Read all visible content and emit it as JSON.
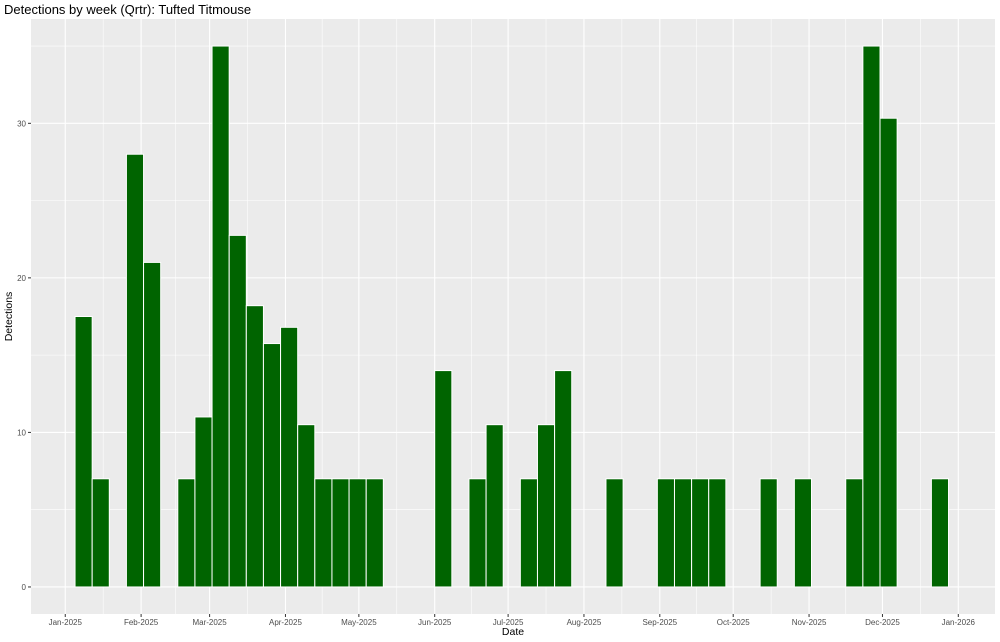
{
  "chart_data": {
    "type": "bar",
    "title": "Detections by week (Qrtr): Tufted Titmouse",
    "xlabel": "Date",
    "ylabel": "Detections",
    "x_is_date": true,
    "xlim": [
      "2024-12-18",
      "2026-01-16"
    ],
    "ylim": [
      -1.75,
      36.75
    ],
    "y_ticks": [
      0,
      10,
      20,
      30
    ],
    "x_ticks": [
      {
        "date": "2025-01-01",
        "label": "Jan-2025"
      },
      {
        "date": "2025-02-01",
        "label": "Feb-2025"
      },
      {
        "date": "2025-03-01",
        "label": "Mar-2025"
      },
      {
        "date": "2025-04-01",
        "label": "Apr-2025"
      },
      {
        "date": "2025-05-01",
        "label": "May-2025"
      },
      {
        "date": "2025-06-01",
        "label": "Jun-2025"
      },
      {
        "date": "2025-07-01",
        "label": "Jul-2025"
      },
      {
        "date": "2025-08-01",
        "label": "Aug-2025"
      },
      {
        "date": "2025-09-01",
        "label": "Sep-2025"
      },
      {
        "date": "2025-10-01",
        "label": "Oct-2025"
      },
      {
        "date": "2025-11-01",
        "label": "Nov-2025"
      },
      {
        "date": "2025-12-01",
        "label": "Dec-2025"
      },
      {
        "date": "2026-01-01",
        "label": "Jan-2026"
      }
    ],
    "grid": true,
    "bar_color": "#006400",
    "panel_background": "#ebebeb",
    "grid_color": "#ffffff",
    "bars": [
      {
        "week_start": "2025-01-05",
        "value": 17.5
      },
      {
        "week_start": "2025-01-12",
        "value": 7
      },
      {
        "week_start": "2025-01-26",
        "value": 28
      },
      {
        "week_start": "2025-02-02",
        "value": 21
      },
      {
        "week_start": "2025-02-16",
        "value": 7
      },
      {
        "week_start": "2025-02-23",
        "value": 11
      },
      {
        "week_start": "2025-03-02",
        "value": 35
      },
      {
        "week_start": "2025-03-09",
        "value": 22.75
      },
      {
        "week_start": "2025-03-16",
        "value": 18.2
      },
      {
        "week_start": "2025-03-23",
        "value": 15.75
      },
      {
        "week_start": "2025-03-30",
        "value": 16.8
      },
      {
        "week_start": "2025-04-06",
        "value": 10.5
      },
      {
        "week_start": "2025-04-13",
        "value": 7
      },
      {
        "week_start": "2025-04-20",
        "value": 7
      },
      {
        "week_start": "2025-04-27",
        "value": 7
      },
      {
        "week_start": "2025-05-04",
        "value": 7
      },
      {
        "week_start": "2025-06-01",
        "value": 14
      },
      {
        "week_start": "2025-06-15",
        "value": 7
      },
      {
        "week_start": "2025-06-22",
        "value": 10.5
      },
      {
        "week_start": "2025-07-06",
        "value": 7
      },
      {
        "week_start": "2025-07-13",
        "value": 10.5
      },
      {
        "week_start": "2025-07-20",
        "value": 14
      },
      {
        "week_start": "2025-08-10",
        "value": 7
      },
      {
        "week_start": "2025-08-31",
        "value": 7
      },
      {
        "week_start": "2025-09-07",
        "value": 7
      },
      {
        "week_start": "2025-09-14",
        "value": 7
      },
      {
        "week_start": "2025-09-21",
        "value": 7
      },
      {
        "week_start": "2025-10-12",
        "value": 7
      },
      {
        "week_start": "2025-10-26",
        "value": 7
      },
      {
        "week_start": "2025-11-16",
        "value": 7
      },
      {
        "week_start": "2025-11-23",
        "value": 35
      },
      {
        "week_start": "2025-11-30",
        "value": 30.33
      },
      {
        "week_start": "2025-12-21",
        "value": 7
      }
    ]
  }
}
